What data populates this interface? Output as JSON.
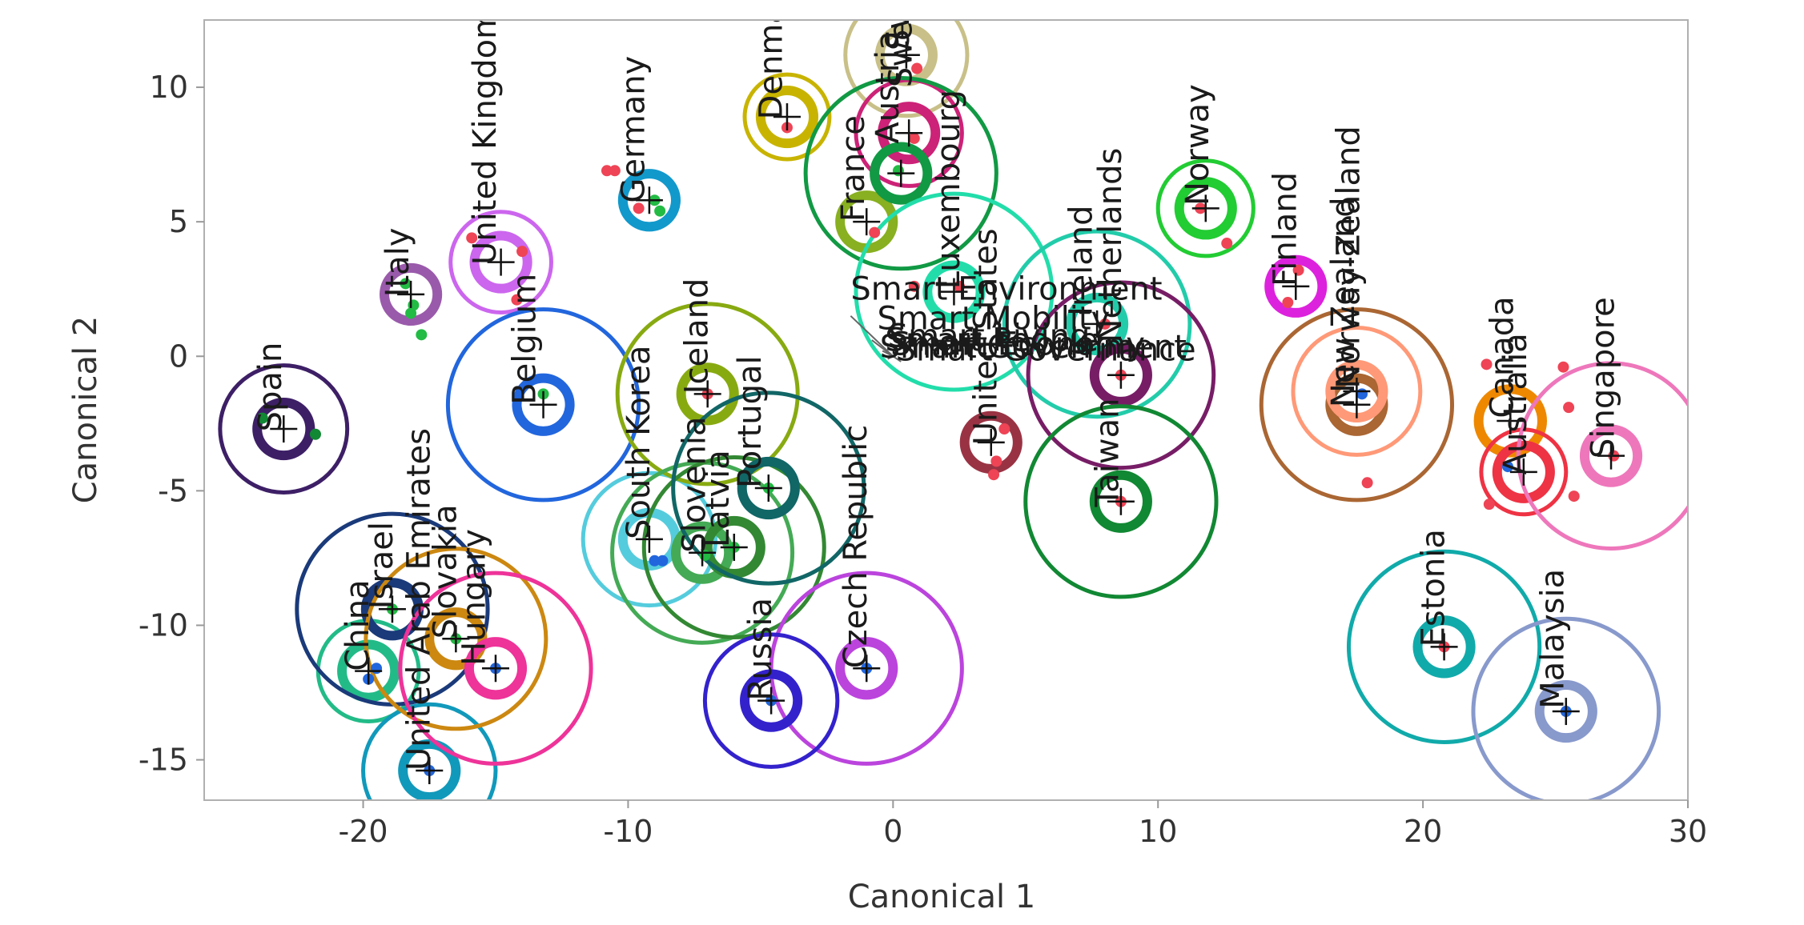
{
  "chart_data": {
    "type": "scatter",
    "title": "",
    "xlabel": "Canonical 1",
    "ylabel": "Canonical 2",
    "xlim": [
      -26,
      30
    ],
    "ylim": [
      -16.5,
      12.5
    ],
    "xticks": [
      {
        "value": -20,
        "label": "-20"
      },
      {
        "value": -10,
        "label": "-10"
      },
      {
        "value": 0,
        "label": "0"
      },
      {
        "value": 10,
        "label": "10"
      },
      {
        "value": 20,
        "label": "20"
      },
      {
        "value": 30,
        "label": "30"
      }
    ],
    "yticks": [
      {
        "value": -15,
        "label": "-15"
      },
      {
        "value": -10,
        "label": "-10"
      },
      {
        "value": -5,
        "label": "-5"
      },
      {
        "value": 0,
        "label": "0"
      },
      {
        "value": 5,
        "label": "5"
      },
      {
        "value": 10,
        "label": "10"
      }
    ],
    "groups": [
      {
        "name": "Spain",
        "x": -23.0,
        "y": -2.7,
        "color": "#3d1f66",
        "r_inner": 1.0,
        "r_outer": 2.4
      },
      {
        "name": "Italy",
        "x": -18.2,
        "y": 2.3,
        "color": "#9a5aab",
        "r_inner": 1.0,
        "r_outer": 1.0
      },
      {
        "name": "United Kingdom",
        "x": -14.8,
        "y": 3.5,
        "color": "#cc66ee",
        "r_inner": 1.0,
        "r_outer": 1.9
      },
      {
        "name": "Belgium",
        "x": -13.2,
        "y": -1.8,
        "color": "#2266dd",
        "r_inner": 1.0,
        "r_outer": 3.6
      },
      {
        "name": "Germany",
        "x": -9.2,
        "y": 5.8,
        "color": "#1199cc",
        "r_inner": 1.0,
        "r_outer": 1.0
      },
      {
        "name": "Denmark",
        "x": -4.0,
        "y": 8.9,
        "color": "#c8b400",
        "r_inner": 1.0,
        "r_outer": 1.6
      },
      {
        "name": "Austria",
        "x": 0.5,
        "y": 11.2,
        "color": "#c8c088",
        "r_inner": 1.0,
        "r_outer": 2.3
      },
      {
        "name": "Sweden",
        "x": 0.6,
        "y": 8.3,
        "color": "#cc2277",
        "r_inner": 1.0,
        "r_outer": 2.0
      },
      {
        "name": "France",
        "x": -1.0,
        "y": 5.0,
        "color": "#88b020",
        "r_inner": 1.0,
        "r_outer": 1.0
      },
      {
        "name": "Switzerland",
        "x": 0.3,
        "y": 6.8,
        "color": "#119944",
        "r_inner": 1.0,
        "r_outer": 3.6
      },
      {
        "name": "Luxembourg",
        "x": 2.3,
        "y": 2.4,
        "color": "#22ddaa",
        "r_inner": 1.0,
        "r_outer": 3.7
      },
      {
        "name": "Norway",
        "x": 11.8,
        "y": 5.5,
        "color": "#22cc33",
        "r_inner": 1.0,
        "r_outer": 1.8
      },
      {
        "name": "Finland",
        "x": 15.2,
        "y": 2.6,
        "color": "#dd22dd",
        "r_inner": 1.0,
        "r_outer": 1.0
      },
      {
        "name": "Ireland",
        "x": 7.7,
        "y": 1.2,
        "color": "#22ccaa",
        "r_inner": 1.0,
        "r_outer": 3.5
      },
      {
        "name": "Netherlands",
        "x": 8.6,
        "y": -0.7,
        "color": "#771d66",
        "r_inner": 1.0,
        "r_outer": 3.5
      },
      {
        "name": "United States",
        "x": 3.7,
        "y": -3.2,
        "color": "#993344",
        "r_inner": 1.0,
        "r_outer": 1.0
      },
      {
        "name": "Taiwan",
        "x": 8.6,
        "y": -5.4,
        "color": "#118833",
        "r_inner": 1.0,
        "r_outer": 3.6
      },
      {
        "name": "New Zealand",
        "x": 17.5,
        "y": -1.8,
        "color": "#aa6633",
        "r_inner": 1.0,
        "r_outer": 3.6
      },
      {
        "name": "Norway-Zealand",
        "x": 17.5,
        "y": -1.3,
        "color": "#ff9977",
        "r_inner": 1.0,
        "r_outer": 2.4
      },
      {
        "name": "Canada",
        "x": 23.3,
        "y": -2.4,
        "color": "#ee8800",
        "r_inner": 1.2,
        "r_outer": 1.2
      },
      {
        "name": "Australia",
        "x": 23.8,
        "y": -4.3,
        "color": "#ee3344",
        "r_inner": 1.0,
        "r_outer": 1.6
      },
      {
        "name": "Singapore",
        "x": 27.1,
        "y": -3.7,
        "color": "#ee77bb",
        "r_inner": 1.0,
        "r_outer": 3.5
      },
      {
        "name": "South Korea",
        "x": -9.2,
        "y": -6.8,
        "color": "#55ccdd",
        "r_inner": 1.0,
        "r_outer": 2.5
      },
      {
        "name": "Iceland",
        "x": -7.0,
        "y": -1.4,
        "color": "#88aa11",
        "r_inner": 1.0,
        "r_outer": 3.4
      },
      {
        "name": "Slovenia",
        "x": -7.2,
        "y": -7.3,
        "color": "#44aa55",
        "r_inner": 1.0,
        "r_outer": 3.4
      },
      {
        "name": "Latvia",
        "x": -6.0,
        "y": -7.1,
        "color": "#338833",
        "r_inner": 1.0,
        "r_outer": 3.4
      },
      {
        "name": "Portugal",
        "x": -4.7,
        "y": -4.9,
        "color": "#116666",
        "r_inner": 1.0,
        "r_outer": 3.6
      },
      {
        "name": "Czech Republic",
        "x": -1.0,
        "y": -11.6,
        "color": "#bb44dd",
        "r_inner": 1.0,
        "r_outer": 3.6
      },
      {
        "name": "Russia",
        "x": -4.6,
        "y": -12.8,
        "color": "#3322cc",
        "r_inner": 1.0,
        "r_outer": 2.5
      },
      {
        "name": "China",
        "x": -19.8,
        "y": -11.7,
        "color": "#22bb88",
        "r_inner": 1.0,
        "r_outer": 1.9
      },
      {
        "name": "Israel",
        "x": -18.9,
        "y": -9.4,
        "color": "#1a3a7a",
        "r_inner": 1.0,
        "r_outer": 3.6
      },
      {
        "name": "United Arab Emirates",
        "x": -17.5,
        "y": -15.4,
        "color": "#1199bb",
        "r_inner": 1.0,
        "r_outer": 2.5
      },
      {
        "name": "Slovakia",
        "x": -16.5,
        "y": -10.5,
        "color": "#cc8811",
        "r_inner": 1.0,
        "r_outer": 3.4
      },
      {
        "name": "Hungary",
        "x": -15.0,
        "y": -11.6,
        "color": "#ee3399",
        "r_inner": 1.0,
        "r_outer": 3.6
      },
      {
        "name": "Estonia",
        "x": 20.8,
        "y": -10.8,
        "color": "#11aaaa",
        "r_inner": 1.0,
        "r_outer": 3.6
      },
      {
        "name": "Malaysia",
        "x": 25.4,
        "y": -13.2,
        "color": "#8899cc",
        "r_inner": 1.0,
        "r_outer": 3.5
      }
    ],
    "labels": [
      {
        "text": "Spain",
        "x": -23.1,
        "y": -2.8,
        "rotate": -90
      },
      {
        "text": "Italy",
        "x": -18.3,
        "y": 2.2,
        "rotate": -90
      },
      {
        "text": "United Kingdom",
        "x": -15.0,
        "y": 3.4,
        "rotate": -90
      },
      {
        "text": "Belgium",
        "x": -13.5,
        "y": -1.8,
        "rotate": -90
      },
      {
        "text": "Germany",
        "x": -9.4,
        "y": 5.7,
        "rotate": -90
      },
      {
        "text": "Denmark",
        "x": -4.2,
        "y": 8.8,
        "rotate": -90
      },
      {
        "text": "Austria",
        "x": 0.2,
        "y": 7.9,
        "rotate": -90
      },
      {
        "text": "Sweden",
        "x": 0.7,
        "y": 10.0,
        "rotate": -90
      },
      {
        "text": "France",
        "x": -1.1,
        "y": 5.0,
        "rotate": -90
      },
      {
        "text": "Switzerland",
        "x": 0.6,
        "y": 11.4,
        "rotate": -90
      },
      {
        "text": "Luxembourg",
        "x": 2.5,
        "y": 2.5,
        "rotate": -90
      },
      {
        "text": "Norway",
        "x": 11.9,
        "y": 5.6,
        "rotate": -90
      },
      {
        "text": "Finland",
        "x": 15.2,
        "y": 2.6,
        "rotate": -90
      },
      {
        "text": "Ireland",
        "x": 7.5,
        "y": 1.5,
        "rotate": -90
      },
      {
        "text": "Netherlands",
        "x": 8.6,
        "y": 0.5,
        "rotate": -90
      },
      {
        "text": "United States",
        "x": 3.9,
        "y": -3.3,
        "rotate": -90
      },
      {
        "text": "Taiwan",
        "x": 8.5,
        "y": -5.6,
        "rotate": -90
      },
      {
        "text": "New Zealand",
        "x": 17.4,
        "y": -1.9,
        "rotate": -90
      },
      {
        "text": "Norway-Zealand",
        "x": 17.6,
        "y": -1.2,
        "rotate": -90
      },
      {
        "text": "Canada",
        "x": 23.4,
        "y": -2.3,
        "rotate": -90
      },
      {
        "text": "Australia",
        "x": 23.9,
        "y": -4.4,
        "rotate": -90
      },
      {
        "text": "Singapore",
        "x": 27.2,
        "y": -3.8,
        "rotate": -90
      },
      {
        "text": "South Korea",
        "x": -9.2,
        "y": -6.8,
        "rotate": -90
      },
      {
        "text": "Iceland",
        "x": -7.0,
        "y": -1.4,
        "rotate": -90
      },
      {
        "text": "Slovenia",
        "x": -7.1,
        "y": -7.3,
        "rotate": -90
      },
      {
        "text": "Latvia",
        "x": -6.2,
        "y": -7.1,
        "rotate": -90
      },
      {
        "text": "Portugal",
        "x": -5.0,
        "y": -4.9,
        "rotate": -90
      },
      {
        "text": "Czech Republic",
        "x": -1.0,
        "y": -11.6,
        "rotate": -90
      },
      {
        "text": "Russia",
        "x": -4.6,
        "y": -12.8,
        "rotate": -90
      },
      {
        "text": "China",
        "x": -19.8,
        "y": -11.7,
        "rotate": -90
      },
      {
        "text": "Israel",
        "x": -18.9,
        "y": -9.4,
        "rotate": -90
      },
      {
        "text": "United Arab Emirates",
        "x": -17.5,
        "y": -15.4,
        "rotate": -90
      },
      {
        "text": "Slovakia",
        "x": -16.5,
        "y": -10.5,
        "rotate": -90
      },
      {
        "text": "Hungary",
        "x": -15.4,
        "y": -11.5,
        "rotate": -90
      },
      {
        "text": "Estonia",
        "x": 20.8,
        "y": -10.8,
        "rotate": -90
      },
      {
        "text": "Malaysia",
        "x": 25.3,
        "y": -13.1,
        "rotate": -90
      },
      {
        "text": "Smart Environment",
        "x": -1.6,
        "y": 2.1,
        "rotate": 0
      },
      {
        "text": "Smart Mobility",
        "x": -0.6,
        "y": 1.0,
        "rotate": 0
      },
      {
        "text": "Smart Living",
        "x": -0.2,
        "y": 0.35,
        "rotate": 0
      },
      {
        "text": "Smart People",
        "x": -0.3,
        "y": 0.2,
        "rotate": 0
      },
      {
        "text": "Smart Economy",
        "x": -0.1,
        "y": 0.05,
        "rotate": 0
      },
      {
        "text": "Smart Governance",
        "x": 0.1,
        "y": -0.15,
        "rotate": 0
      },
      {
        "text": "Smart Government",
        "x": -0.5,
        "y": -0.05,
        "rotate": 0
      }
    ],
    "biplot_rays": [
      {
        "name": "Smart Environment",
        "x": -1.6,
        "y": 1.5
      },
      {
        "name": "Smart Mobility",
        "x": -0.8,
        "y": 0.6
      },
      {
        "name": "Smart Living",
        "x": -0.4,
        "y": 0.2
      },
      {
        "name": "Smart People",
        "x": -0.2,
        "y": -0.1
      },
      {
        "name": "Smart Economy",
        "x": 0.1,
        "y": 0.0
      },
      {
        "name": "Smart Governance",
        "x": 0.3,
        "y": -0.2
      }
    ],
    "points": [
      {
        "x": -23.8,
        "y": -2.3,
        "color": "#118833"
      },
      {
        "x": -21.8,
        "y": -2.9,
        "color": "#118833"
      },
      {
        "x": -18.2,
        "y": 1.6,
        "color": "#22bb44"
      },
      {
        "x": -18.1,
        "y": 1.9,
        "color": "#22bb44"
      },
      {
        "x": -17.8,
        "y": 0.8,
        "color": "#22bb44"
      },
      {
        "x": -18.4,
        "y": 2.7,
        "color": "#22bb44"
      },
      {
        "x": -15.9,
        "y": 4.4,
        "color": "#ee4455"
      },
      {
        "x": -14.2,
        "y": 2.1,
        "color": "#ee4455"
      },
      {
        "x": -14.0,
        "y": 3.9,
        "color": "#ee4455"
      },
      {
        "x": -13.2,
        "y": -1.4,
        "color": "#22bb44"
      },
      {
        "x": -10.8,
        "y": 6.9,
        "color": "#ee4455"
      },
      {
        "x": -10.5,
        "y": 6.9,
        "color": "#ee4455"
      },
      {
        "x": -9.6,
        "y": 5.5,
        "color": "#ee4455"
      },
      {
        "x": -9.0,
        "y": 5.8,
        "color": "#22bb44"
      },
      {
        "x": -8.8,
        "y": 5.4,
        "color": "#22bb44"
      },
      {
        "x": -4.0,
        "y": 8.5,
        "color": "#ee4455"
      },
      {
        "x": 0.9,
        "y": 10.7,
        "color": "#ee4455"
      },
      {
        "x": 0.8,
        "y": 8.1,
        "color": "#ee4455"
      },
      {
        "x": 0.2,
        "y": 6.9,
        "color": "#22bb44"
      },
      {
        "x": -0.7,
        "y": 4.6,
        "color": "#ee4455"
      },
      {
        "x": 0.8,
        "y": 2.6,
        "color": "#ee4455"
      },
      {
        "x": 2.5,
        "y": 2.6,
        "color": "#ee4455"
      },
      {
        "x": 12.6,
        "y": 4.2,
        "color": "#ee4455"
      },
      {
        "x": 11.6,
        "y": 5.5,
        "color": "#ee4455"
      },
      {
        "x": 14.9,
        "y": 2.0,
        "color": "#ee4455"
      },
      {
        "x": 15.3,
        "y": 3.2,
        "color": "#ee4455"
      },
      {
        "x": 8.6,
        "y": -0.7,
        "color": "#ee4455"
      },
      {
        "x": 8.0,
        "y": 1.2,
        "color": "#ee4455"
      },
      {
        "x": 3.8,
        "y": -4.4,
        "color": "#ee4455"
      },
      {
        "x": 3.9,
        "y": -3.9,
        "color": "#ee4455"
      },
      {
        "x": 4.2,
        "y": -2.7,
        "color": "#ee4455"
      },
      {
        "x": 8.6,
        "y": -5.4,
        "color": "#ee4455"
      },
      {
        "x": 17.7,
        "y": -1.4,
        "color": "#2266dd"
      },
      {
        "x": 17.9,
        "y": -4.7,
        "color": "#ee4455"
      },
      {
        "x": 22.4,
        "y": -0.3,
        "color": "#ee4455"
      },
      {
        "x": 22.5,
        "y": -5.5,
        "color": "#ee4455"
      },
      {
        "x": 23.2,
        "y": -4.1,
        "color": "#2266dd"
      },
      {
        "x": 25.3,
        "y": -0.4,
        "color": "#ee4455"
      },
      {
        "x": 25.5,
        "y": -1.9,
        "color": "#ee4455"
      },
      {
        "x": 25.7,
        "y": -5.2,
        "color": "#ee4455"
      },
      {
        "x": 27.2,
        "y": -3.7,
        "color": "#ee4455"
      },
      {
        "x": -7.0,
        "y": -1.4,
        "color": "#ee4455"
      },
      {
        "x": -9.0,
        "y": -7.6,
        "color": "#2266dd"
      },
      {
        "x": -8.7,
        "y": -7.6,
        "color": "#2266dd"
      },
      {
        "x": -7.1,
        "y": -7.4,
        "color": "#22bb44"
      },
      {
        "x": -6.0,
        "y": -7.1,
        "color": "#22bb44"
      },
      {
        "x": -4.7,
        "y": -4.9,
        "color": "#22bb44"
      },
      {
        "x": -1.0,
        "y": -11.6,
        "color": "#2266dd"
      },
      {
        "x": -4.6,
        "y": -12.8,
        "color": "#2266dd"
      },
      {
        "x": -19.8,
        "y": -12.0,
        "color": "#2266dd"
      },
      {
        "x": -19.5,
        "y": -11.6,
        "color": "#2266dd"
      },
      {
        "x": -18.9,
        "y": -9.4,
        "color": "#22bb44"
      },
      {
        "x": -17.5,
        "y": -15.4,
        "color": "#2266dd"
      },
      {
        "x": -16.5,
        "y": -10.5,
        "color": "#22bb44"
      },
      {
        "x": -15.0,
        "y": -11.6,
        "color": "#2266dd"
      },
      {
        "x": 20.8,
        "y": -10.8,
        "color": "#ee4455"
      },
      {
        "x": 25.4,
        "y": -13.2,
        "color": "#2266dd"
      }
    ]
  }
}
